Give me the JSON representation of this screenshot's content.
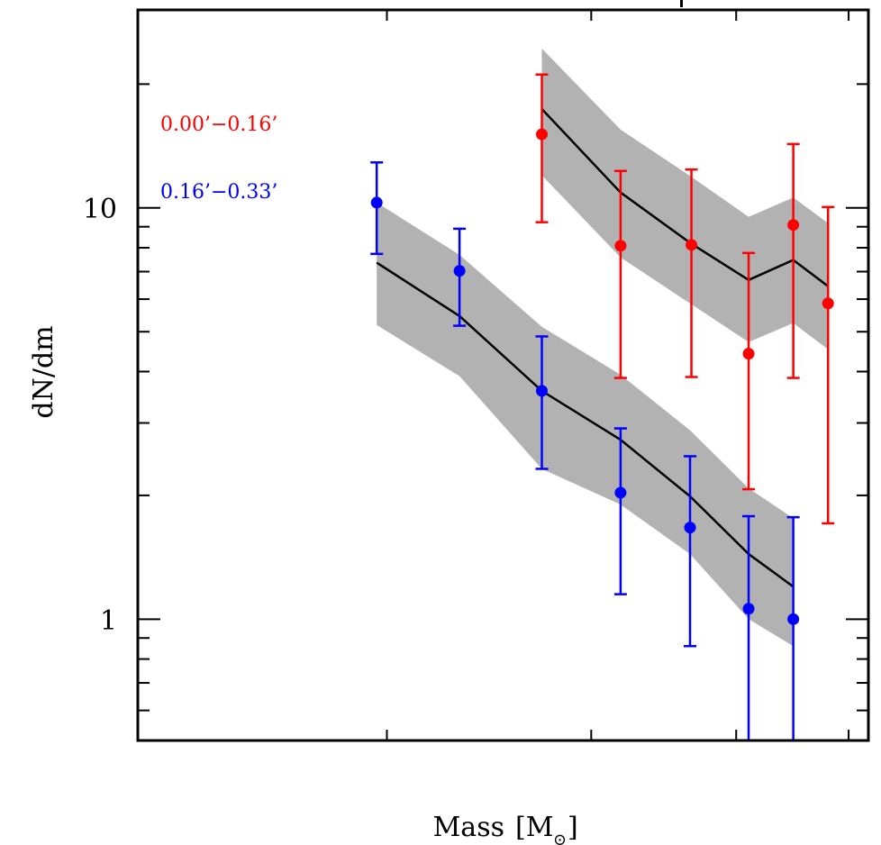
{
  "chart_data": {
    "type": "scatter",
    "title": "",
    "xlabel": "Mass [M⊙]",
    "xlabel_main": "Mass",
    "xlabel_unit": "M",
    "xlabel_subscript": "⊙",
    "ylabel": "dN/dm",
    "xscale": "log",
    "yscale": "log",
    "xlim": [
      1.22,
      5.2
    ],
    "ylim": [
      0.507,
      30.3
    ],
    "x_major_ticks": [
      2,
      3,
      4,
      5
    ],
    "x_tick_labels_visible": false,
    "y_major_ticks": [
      1,
      10
    ],
    "y_tick_labels": [
      "1",
      "10"
    ],
    "y_minor_ticks": [
      0.6,
      0.7,
      0.8,
      0.9,
      2,
      3,
      4,
      5,
      6,
      7,
      8,
      9,
      20
    ],
    "grid": false,
    "legend_position": "top-left",
    "series": [
      {
        "name": "0.00’−0.16’",
        "color": "#ff0000",
        "points": [
          {
            "x": 2.72,
            "y": 15.1,
            "yerr_low": 9.23,
            "yerr_high": 21.1
          },
          {
            "x": 3.18,
            "y": 8.09,
            "yerr_low": 3.86,
            "yerr_high": 12.3
          },
          {
            "x": 3.66,
            "y": 8.13,
            "yerr_low": 3.88,
            "yerr_high": 12.4
          },
          {
            "x": 4.1,
            "y": 4.42,
            "yerr_low": 2.07,
            "yerr_high": 7.77
          },
          {
            "x": 4.48,
            "y": 9.09,
            "yerr_low": 3.86,
            "yerr_high": 14.3
          },
          {
            "x": 4.8,
            "y": 5.86,
            "yerr_low": 1.71,
            "yerr_high": 10.05
          }
        ],
        "model": {
          "color": "#000000",
          "band_color": "#b2b2b2",
          "x": [
            2.72,
            3.18,
            3.66,
            4.1,
            4.48,
            4.8
          ],
          "y": [
            17.4,
            10.9,
            8.18,
            6.68,
            7.47,
            6.45
          ],
          "band_high": [
            24.4,
            15.5,
            11.9,
            9.51,
            10.6,
            9.18
          ],
          "band_low": [
            12.0,
            7.58,
            5.83,
            4.72,
            5.25,
            4.53
          ]
        }
      },
      {
        "name": "0.16’−0.33’",
        "color": "#0000ff",
        "points": [
          {
            "x": 1.96,
            "y": 10.3,
            "yerr_low": 7.73,
            "yerr_high": 12.9
          },
          {
            "x": 2.31,
            "y": 7.03,
            "yerr_low": 5.17,
            "yerr_high": 8.9
          },
          {
            "x": 2.72,
            "y": 3.59,
            "yerr_low": 2.32,
            "yerr_high": 4.87
          },
          {
            "x": 3.18,
            "y": 2.03,
            "yerr_low": 1.15,
            "yerr_high": 2.91
          },
          {
            "x": 3.65,
            "y": 1.67,
            "yerr_low": 0.86,
            "yerr_high": 2.49
          },
          {
            "x": 4.1,
            "y": 1.06,
            "yerr_low": 0.3,
            "yerr_high": 1.78
          },
          {
            "x": 4.48,
            "y": 1.0,
            "yerr_low": 0.3,
            "yerr_high": 1.77
          }
        ],
        "model": {
          "color": "#000000",
          "band_color": "#b2b2b2",
          "x": [
            1.96,
            2.31,
            2.72,
            3.18,
            3.65,
            4.1,
            4.48
          ],
          "y": [
            7.36,
            5.46,
            3.59,
            2.73,
            1.99,
            1.44,
            1.2
          ],
          "band_high": [
            10.3,
            7.69,
            5.14,
            3.93,
            2.88,
            2.08,
            1.76
          ],
          "band_low": [
            5.19,
            3.9,
            2.32,
            1.9,
            1.44,
            1.0,
            0.86
          ]
        }
      }
    ]
  }
}
